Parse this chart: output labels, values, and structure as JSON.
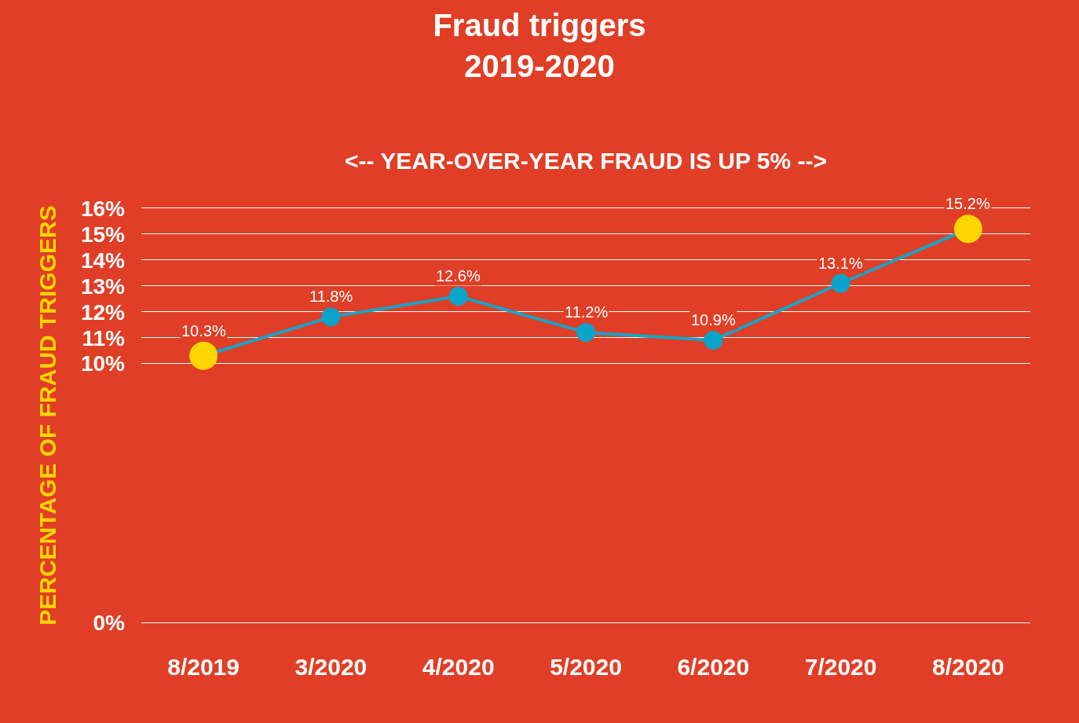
{
  "chart_data": {
    "type": "line",
    "title": "Fraud triggers\n2019-2020",
    "subtitle": "<-- YEAR-OVER-YEAR FRAUD IS UP 5% -->",
    "ylabel": "PERCENTAGE OF FRAUD TRIGGERS",
    "categories": [
      "8/2019",
      "3/2020",
      "4/2020",
      "5/2020",
      "6/2020",
      "7/2020",
      "8/2020"
    ],
    "series": [
      {
        "color": "#1aa3c8",
        "values": [
          10.3,
          11.8,
          12.6,
          11.2,
          10.9,
          13.1,
          15.2
        ],
        "colors": [
          "#ffd500",
          "#0aa3c9",
          "#0aa3c9",
          "#0aa3c9",
          "#0aa3c9",
          "#0aa3c9",
          "#ffd500"
        ],
        "value_labels": [
          "10.3%",
          "11.8%",
          "12.6%",
          "11.2%",
          "10.9%",
          "13.1%",
          "15.2%"
        ]
      }
    ],
    "ylim": [
      0,
      16
    ],
    "yticks": [
      {
        "value": 0,
        "label": "0%"
      },
      {
        "value": 10,
        "label": "10%"
      },
      {
        "value": 11,
        "label": "11%"
      },
      {
        "value": 12,
        "label": "12%"
      },
      {
        "value": 13,
        "label": "13%"
      },
      {
        "value": 14,
        "label": "14%"
      },
      {
        "value": 15,
        "label": "15%"
      },
      {
        "value": 16,
        "label": "16%"
      }
    ],
    "grid": "y",
    "marker": "circle",
    "line_style": "solid"
  }
}
